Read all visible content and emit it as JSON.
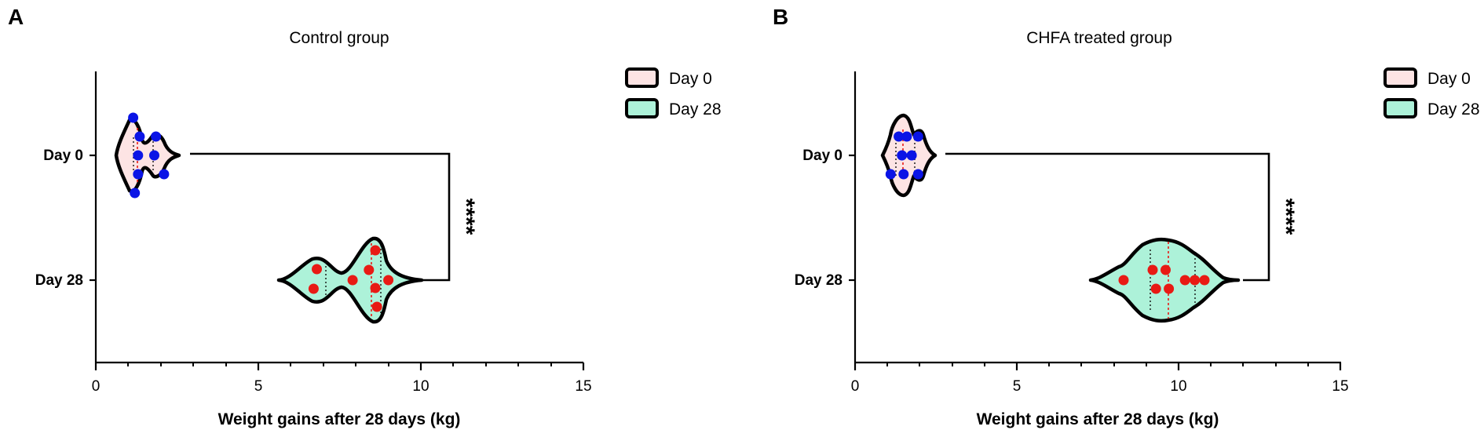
{
  "chart_data": [
    {
      "panel": "A",
      "type": "violin",
      "title": "Control group",
      "xlabel": "Weight gains after 28 days (kg)",
      "ylabel": "",
      "xlim": [
        0,
        15
      ],
      "xticks": [
        "0",
        "5",
        "10",
        "15"
      ],
      "categories": [
        "Day 0",
        "Day 28"
      ],
      "legend": [
        "Day 0",
        "Day 28"
      ],
      "legend_position": "top-right",
      "significance": "****",
      "colors": {
        "day0_fill": "#fde4e4",
        "day28_fill": "#adf2d9",
        "day0_points": "#0a14e6",
        "day28_points": "#e81a14",
        "outline": "#000000"
      },
      "series": [
        {
          "category": "Day 0",
          "values": [
            1.15,
            1.35,
            1.85,
            1.3,
            1.8,
            1.3,
            2.1,
            1.2
          ]
        },
        {
          "category": "Day 28",
          "values": [
            6.8,
            6.7,
            7.9,
            8.4,
            8.6,
            9.0,
            8.6,
            8.65
          ]
        }
      ]
    },
    {
      "panel": "B",
      "type": "violin",
      "title": "CHFA treated group",
      "xlabel": "Weight gains after 28 days (kg)",
      "ylabel": "",
      "xlim": [
        0,
        15
      ],
      "xticks": [
        "0",
        "5",
        "10",
        "15"
      ],
      "categories": [
        "Day 0",
        "Day 28"
      ],
      "legend": [
        "Day 0",
        "Day 28"
      ],
      "legend_position": "top-right",
      "significance": "****",
      "colors": {
        "day0_fill": "#fde4e4",
        "day28_fill": "#adf2d9",
        "day0_points": "#0a14e6",
        "day28_points": "#e81a14",
        "outline": "#000000"
      },
      "series": [
        {
          "category": "Day 0",
          "values": [
            1.35,
            1.6,
            1.95,
            1.45,
            1.75,
            1.1,
            1.5,
            1.95
          ]
        },
        {
          "category": "Day 28",
          "values": [
            8.3,
            9.2,
            9.6,
            9.3,
            9.7,
            10.2,
            10.5,
            10.8
          ]
        }
      ]
    }
  ]
}
